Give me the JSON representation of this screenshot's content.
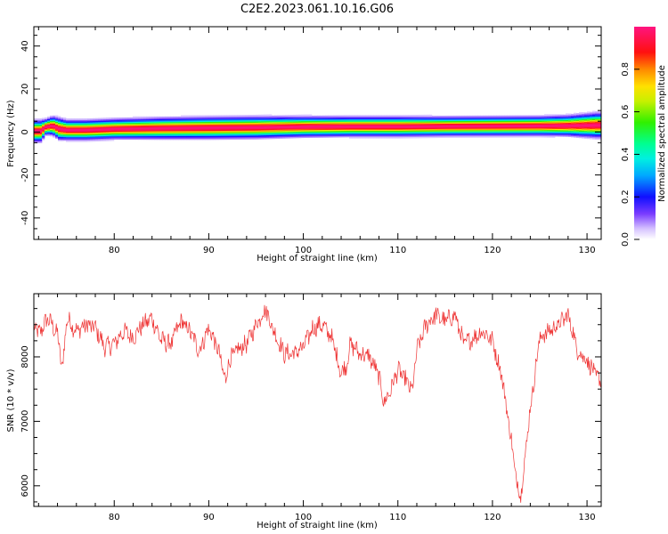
{
  "title": "C2E2.2023.061.10.16.G06",
  "chart_data": [
    {
      "type": "heatmap",
      "xlabel": "Height of straight line (km)",
      "ylabel": "Frequency (Hz)",
      "xlim": [
        71.5,
        131.5
      ],
      "ylim": [
        -50,
        49
      ],
      "x_ticks": [
        80,
        90,
        100,
        110,
        120,
        130
      ],
      "y_ticks": [
        -40,
        -20,
        0,
        20,
        40
      ],
      "colorbar": {
        "label": "Normalized spectral amplitude",
        "range": [
          0,
          1
        ],
        "ticks": [
          "0.0",
          "0.2",
          "0.4",
          "0.6",
          "0.8"
        ],
        "colormap": "gist_ncar_r"
      },
      "ridge": {
        "x": [
          72.2,
          72.8,
          73.5,
          74.2,
          75,
          77,
          80,
          85,
          90,
          95,
          100,
          105,
          110,
          115,
          120,
          125,
          128,
          131
        ],
        "peak_freq": [
          0.5,
          2.5,
          3,
          1.5,
          1,
          1,
          1.5,
          1.8,
          2,
          2.2,
          2.5,
          2.6,
          2.6,
          2.7,
          2.8,
          2.9,
          3,
          3.2
        ],
        "half_width": [
          3.5,
          2.5,
          3,
          3.5,
          3.2,
          3.2,
          3.2,
          3.4,
          3.5,
          3.5,
          3.3,
          3.2,
          3.2,
          3.1,
          3.1,
          3.1,
          3.3,
          4
        ]
      }
    },
    {
      "type": "line",
      "xlabel": "Height of straight line (km)",
      "ylabel": "SNR (10 * v/v)",
      "xlim": [
        71.5,
        131.5
      ],
      "ylim": [
        5680,
        8980
      ],
      "x_ticks": [
        80,
        90,
        100,
        110,
        120,
        130
      ],
      "y_ticks": [
        6000,
        7000,
        8000
      ],
      "color": "#ee3333",
      "series": [
        {
          "x": [
            71.5,
            72,
            73,
            74,
            74.5,
            75,
            76,
            77,
            78,
            79,
            80,
            81,
            82,
            83,
            84,
            85,
            86,
            87,
            88,
            89,
            90,
            91,
            91.8,
            92,
            93,
            94,
            95,
            96,
            97,
            98,
            99,
            100,
            101,
            102,
            103,
            104,
            104.5,
            105,
            106,
            107,
            108,
            108.5,
            109,
            110,
            111,
            111.5,
            112,
            113,
            114,
            115,
            116,
            117,
            118,
            119,
            120,
            121,
            122,
            122.5,
            123,
            124,
            125,
            126,
            127,
            128,
            129,
            130,
            131,
            131.5
          ],
          "y": [
            8500,
            8350,
            8600,
            8350,
            7800,
            8600,
            8400,
            8500,
            8450,
            8150,
            8200,
            8400,
            8300,
            8500,
            8600,
            8250,
            8200,
            8550,
            8400,
            8100,
            8450,
            8100,
            7600,
            7900,
            8100,
            8200,
            8500,
            8750,
            8350,
            8050,
            8050,
            8150,
            8450,
            8500,
            8300,
            7750,
            7850,
            8200,
            8050,
            8000,
            7700,
            7300,
            7400,
            7800,
            7600,
            7450,
            8100,
            8500,
            8650,
            8550,
            8650,
            8200,
            8300,
            8400,
            8250,
            7700,
            6700,
            6100,
            5850,
            7200,
            8300,
            8400,
            8500,
            8650,
            8100,
            7950,
            7700,
            7600
          ]
        }
      ]
    }
  ]
}
